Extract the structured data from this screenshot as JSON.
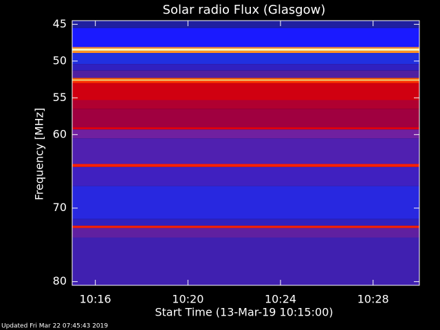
{
  "chart_data": {
    "type": "spectrogram",
    "title": "Solar radio Flux (Glasgow)",
    "y_label": "Frequency [MHz]",
    "x_label": "Start Time (13-Mar-19 10:15:00)",
    "footer": "Updated Fri Mar 22 07:45:43 2019",
    "ylim": [
      44.5,
      80.5
    ],
    "y_inverted": true,
    "yticks": [
      45,
      50,
      55,
      60,
      70,
      80
    ],
    "xlim": [
      0,
      15
    ],
    "xticks": [
      {
        "value": 1,
        "label": "10:16"
      },
      {
        "value": 5,
        "label": "10:20"
      },
      {
        "value": 9,
        "label": "10:24"
      },
      {
        "value": 13,
        "label": "10:28"
      }
    ],
    "bands": [
      {
        "from": 44.5,
        "to": 45.5,
        "color": "#2020a0"
      },
      {
        "from": 45.5,
        "to": 48.1,
        "color": "#1a1aff"
      },
      {
        "from": 48.1,
        "to": 48.3,
        "color": "#ff9020"
      },
      {
        "from": 48.3,
        "to": 48.6,
        "color": "#ffffc0"
      },
      {
        "from": 48.6,
        "to": 48.9,
        "color": "#ff9020"
      },
      {
        "from": 48.9,
        "to": 50.4,
        "color": "#2030e0"
      },
      {
        "from": 50.4,
        "to": 51.3,
        "color": "#3020c0"
      },
      {
        "from": 51.3,
        "to": 52.3,
        "color": "#5020a0"
      },
      {
        "from": 52.3,
        "to": 52.5,
        "color": "#ff6000"
      },
      {
        "from": 52.5,
        "to": 52.7,
        "color": "#ffd070"
      },
      {
        "from": 52.7,
        "to": 53.0,
        "color": "#ff3000"
      },
      {
        "from": 53.0,
        "to": 55.3,
        "color": "#d00010"
      },
      {
        "from": 55.3,
        "to": 56.5,
        "color": "#b00030"
      },
      {
        "from": 56.5,
        "to": 59.0,
        "color": "#a00040"
      },
      {
        "from": 59.0,
        "to": 59.3,
        "color": "#e00010"
      },
      {
        "from": 59.3,
        "to": 60.5,
        "color": "#7020a0"
      },
      {
        "from": 60.5,
        "to": 64.0,
        "color": "#5020b0"
      },
      {
        "from": 64.0,
        "to": 64.4,
        "color": "#ff2000"
      },
      {
        "from": 64.4,
        "to": 67.0,
        "color": "#4020c0"
      },
      {
        "from": 67.0,
        "to": 71.5,
        "color": "#2828e0"
      },
      {
        "from": 71.5,
        "to": 72.4,
        "color": "#3020c0"
      },
      {
        "from": 72.4,
        "to": 72.7,
        "color": "#ff2000"
      },
      {
        "from": 72.7,
        "to": 74.0,
        "color": "#6020a0"
      },
      {
        "from": 74.0,
        "to": 80.5,
        "color": "#4020b0"
      }
    ]
  }
}
